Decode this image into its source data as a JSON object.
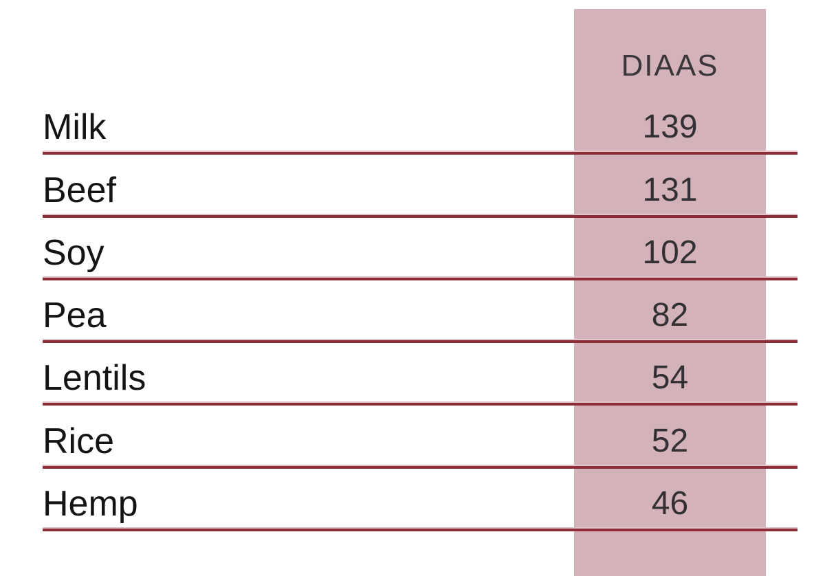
{
  "colors": {
    "highlight_column": "#d3b2b9",
    "rule_line": "#8e2c37",
    "rule_line_light": "#e2c5cb",
    "label_text": "#141414",
    "value_text": "#333033",
    "header_text": "#3b3639",
    "background": "#ffffff"
  },
  "table": {
    "header": {
      "diaas_label": "DIAAS"
    },
    "rows": [
      {
        "label": "Milk",
        "value": "139"
      },
      {
        "label": "Beef",
        "value": "131"
      },
      {
        "label": "Soy",
        "value": "102"
      },
      {
        "label": "Pea",
        "value": "82"
      },
      {
        "label": "Lentils",
        "value": "54"
      },
      {
        "label": "Rice",
        "value": "52"
      },
      {
        "label": "Hemp",
        "value": "46"
      }
    ]
  },
  "chart_data": {
    "type": "table",
    "title": "",
    "columns": [
      "",
      "DIAAS"
    ],
    "categories": [
      "Milk",
      "Beef",
      "Soy",
      "Pea",
      "Lentils",
      "Rice",
      "Hemp"
    ],
    "values": [
      139,
      131,
      102,
      82,
      54,
      52,
      46
    ],
    "layout_hints": {
      "value_column_highlighted": true,
      "highlight_color": "#d3b2b9",
      "row_separator_color": "#8e2c37",
      "sorted": "descending"
    }
  }
}
